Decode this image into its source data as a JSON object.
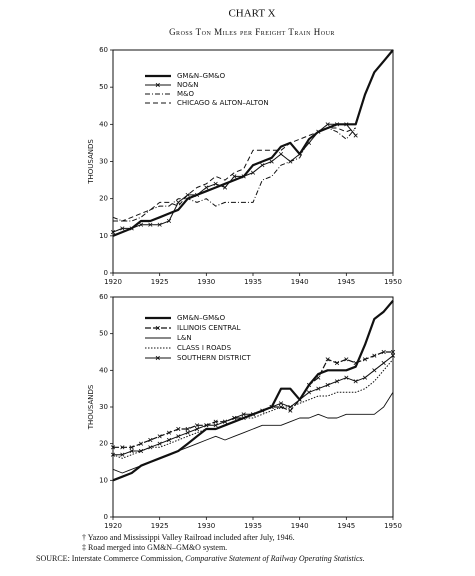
{
  "title": "CHART X",
  "subtitle": "Gross Ton Miles per Freight Train Hour",
  "footnotes": [
    "† Yazoo and Mississippi Valley Railroad included after July, 1946.",
    "‡ Road merged into GM&N–GM&O system."
  ],
  "source": {
    "label": "SOURCE:",
    "text": "Interstate Commerce Commission,",
    "title": "Comparative Statement of Railway Operating Statistics."
  },
  "chart_data": [
    {
      "type": "line",
      "ylabel": "THOUSANDS",
      "x": [
        1920,
        1921,
        1922,
        1923,
        1924,
        1925,
        1926,
        1927,
        1928,
        1929,
        1930,
        1931,
        1932,
        1933,
        1934,
        1935,
        1936,
        1937,
        1938,
        1939,
        1940,
        1941,
        1942,
        1943,
        1944,
        1945,
        1946,
        1947,
        1948,
        1949,
        1950
      ],
      "xlim": [
        1920,
        1950
      ],
      "xticks": [
        1920,
        1925,
        1930,
        1935,
        1940,
        1945,
        1950
      ],
      "ylim": [
        0,
        60
      ],
      "yticks": [
        0,
        10,
        20,
        30,
        40,
        50,
        60
      ],
      "series": [
        {
          "name": "GM&N–GM&O",
          "color": "#111111",
          "width": 2.2,
          "dash": "none",
          "marker": false,
          "values": [
            10,
            11,
            12,
            14,
            14,
            15,
            16,
            17,
            20,
            21,
            22,
            23,
            24,
            25,
            26,
            29,
            30,
            31,
            34,
            35,
            32,
            36,
            38,
            39,
            40,
            40,
            40,
            48,
            54,
            57,
            60
          ]
        },
        {
          "name": "NO&N",
          "color": "#111111",
          "width": 1,
          "dash": "none",
          "marker": true,
          "values": [
            11,
            12,
            12,
            13,
            13,
            13,
            14,
            19,
            21,
            21,
            23,
            24,
            23,
            26,
            26,
            27,
            29,
            30,
            32,
            30,
            32,
            35,
            38,
            40,
            40,
            40,
            37,
            null,
            null,
            null,
            null
          ]
        },
        {
          "name": "M&O",
          "color": "#111111",
          "width": 1,
          "dash": "5 2 1 2",
          "marker": false,
          "values": [
            15,
            14,
            14,
            15,
            17,
            18,
            18,
            20,
            20,
            19,
            20,
            18,
            19,
            19,
            19,
            19,
            25,
            26,
            29,
            30,
            31,
            36,
            38,
            39,
            38,
            36,
            39,
            null,
            null,
            null,
            null
          ]
        },
        {
          "name": "CHICAGO & ALTON–ALTON",
          "color": "#111111",
          "width": 1,
          "dash": "5 3",
          "marker": false,
          "values": [
            14,
            14,
            15,
            16,
            17,
            19,
            19,
            18,
            21,
            23,
            24,
            26,
            25,
            27,
            28,
            33,
            33,
            33,
            33,
            35,
            36,
            37,
            38,
            39,
            39,
            38,
            39,
            null,
            null,
            null,
            null
          ]
        }
      ]
    },
    {
      "type": "line",
      "ylabel": "THOUSANDS",
      "x": [
        1920,
        1921,
        1922,
        1923,
        1924,
        1925,
        1926,
        1927,
        1928,
        1929,
        1930,
        1931,
        1932,
        1933,
        1934,
        1935,
        1936,
        1937,
        1938,
        1939,
        1940,
        1941,
        1942,
        1943,
        1944,
        1945,
        1946,
        1947,
        1948,
        1949,
        1950
      ],
      "xlim": [
        1920,
        1950
      ],
      "xticks": [
        1920,
        1925,
        1930,
        1935,
        1940,
        1945,
        1950
      ],
      "ylim": [
        0,
        60
      ],
      "yticks": [
        0,
        10,
        20,
        30,
        40,
        50,
        60
      ],
      "series": [
        {
          "name": "GM&N–GM&O",
          "color": "#111111",
          "width": 2.2,
          "dash": "none",
          "marker": false,
          "values": [
            10,
            11,
            12,
            14,
            15,
            16,
            17,
            18,
            20,
            22,
            24,
            24,
            25,
            26,
            27,
            28,
            29,
            30,
            35,
            35,
            32,
            36,
            39,
            40,
            40,
            40,
            41,
            47,
            54,
            56,
            59
          ]
        },
        {
          "name": "ILLINOIS CENTRAL",
          "color": "#111111",
          "width": 1.2,
          "dash": "6 2",
          "marker": true,
          "values": [
            19,
            19,
            19,
            20,
            21,
            22,
            23,
            24,
            24,
            25,
            25,
            26,
            26,
            27,
            27,
            28,
            29,
            30,
            30,
            29,
            32,
            36,
            38,
            43,
            42,
            43,
            42,
            43,
            44,
            45,
            45
          ]
        },
        {
          "name": "L&N",
          "color": "#111111",
          "width": 0.9,
          "dash": "none",
          "marker": false,
          "values": [
            13,
            12,
            13,
            14,
            15,
            16,
            17,
            18,
            19,
            20,
            21,
            22,
            21,
            22,
            23,
            24,
            25,
            25,
            25,
            26,
            27,
            27,
            28,
            27,
            27,
            28,
            28,
            28,
            28,
            30,
            34
          ]
        },
        {
          "name": "CLASS I ROADS",
          "color": "#111111",
          "width": 1,
          "dash": "1.5 1.5",
          "marker": false,
          "values": [
            17,
            16,
            17,
            18,
            19,
            19,
            20,
            21,
            22,
            23,
            24,
            24,
            25,
            26,
            27,
            27,
            28,
            29,
            30,
            30,
            31,
            32,
            33,
            33,
            34,
            34,
            34,
            35,
            37,
            40,
            43
          ]
        },
        {
          "name": "SOUTHERN DISTRICT",
          "color": "#111111",
          "width": 1,
          "dash": "none",
          "marker": true,
          "values": [
            17,
            17,
            18,
            18,
            19,
            20,
            21,
            22,
            23,
            24,
            25,
            25,
            26,
            27,
            28,
            28,
            29,
            30,
            31,
            30,
            32,
            34,
            35,
            36,
            37,
            38,
            37,
            38,
            40,
            42,
            44
          ]
        }
      ]
    }
  ]
}
